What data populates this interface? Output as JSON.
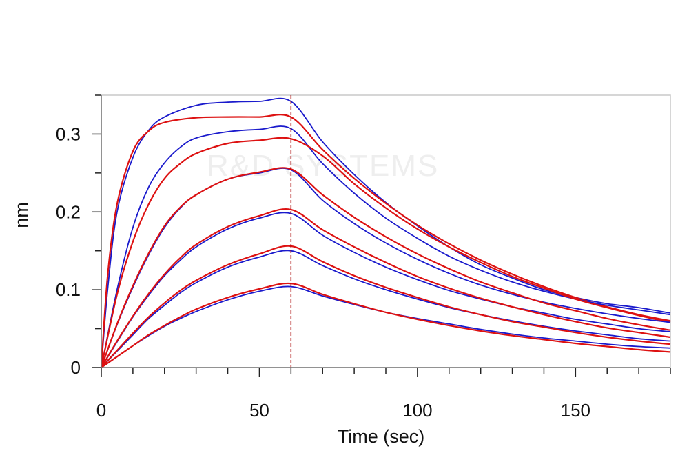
{
  "chart_data": {
    "type": "line",
    "title": "",
    "xlabel": "Time (sec)",
    "ylabel": "nm",
    "xlim": [
      0,
      180
    ],
    "ylim": [
      0,
      0.35
    ],
    "xticks": [
      "0",
      "50",
      "100",
      "150"
    ],
    "yticks": [
      "0",
      "0.1",
      "0.2",
      "0.3"
    ],
    "grid": false,
    "legend": "none",
    "association_end": 60,
    "watermark": "R&D SYSTEMS",
    "colors": {
      "measured": "#1a1acc",
      "fit": "#dd1111",
      "marker": "#aa0000",
      "frame": "#c8c8c8"
    },
    "series": [
      {
        "kind": "measured",
        "x": [
          0,
          2,
          5,
          10,
          15,
          20,
          30,
          40,
          50,
          60,
          70,
          80,
          90,
          100,
          110,
          120,
          130,
          140,
          150,
          160,
          170,
          180
        ],
        "y": [
          0,
          0.1,
          0.2,
          0.27,
          0.305,
          0.322,
          0.337,
          0.341,
          0.342,
          0.342,
          0.29,
          0.248,
          0.212,
          0.182,
          0.155,
          0.132,
          0.115,
          0.1,
          0.09,
          0.082,
          0.077,
          0.07
        ]
      },
      {
        "kind": "fit",
        "x": [
          0,
          2,
          5,
          10,
          15,
          20,
          30,
          40,
          50,
          60,
          70,
          80,
          90,
          100,
          110,
          120,
          130,
          140,
          150,
          160,
          170,
          180
        ],
        "y": [
          0,
          0.118,
          0.21,
          0.278,
          0.304,
          0.315,
          0.321,
          0.322,
          0.322,
          0.322,
          0.28,
          0.243,
          0.211,
          0.183,
          0.159,
          0.138,
          0.12,
          0.104,
          0.09,
          0.078,
          0.068,
          0.06
        ]
      },
      {
        "kind": "measured",
        "x": [
          0,
          5,
          10,
          15,
          20,
          25,
          30,
          40,
          50,
          60,
          70,
          80,
          90,
          100,
          110,
          120,
          130,
          140,
          150,
          160,
          170,
          180
        ],
        "y": [
          0,
          0.1,
          0.18,
          0.232,
          0.263,
          0.283,
          0.295,
          0.303,
          0.306,
          0.307,
          0.262,
          0.224,
          0.192,
          0.166,
          0.143,
          0.125,
          0.11,
          0.098,
          0.088,
          0.08,
          0.074,
          0.068
        ]
      },
      {
        "kind": "fit",
        "x": [
          0,
          5,
          10,
          15,
          20,
          25,
          30,
          40,
          50,
          60,
          70,
          80,
          90,
          100,
          110,
          120,
          130,
          140,
          150,
          160,
          170,
          180
        ],
        "y": [
          0,
          0.094,
          0.162,
          0.21,
          0.243,
          0.262,
          0.275,
          0.288,
          0.292,
          0.294,
          0.272,
          0.236,
          0.205,
          0.178,
          0.155,
          0.135,
          0.117,
          0.102,
          0.088,
          0.077,
          0.067,
          0.058
        ]
      },
      {
        "kind": "measured",
        "x": [
          0,
          5,
          10,
          15,
          20,
          25,
          30,
          40,
          50,
          60,
          70,
          80,
          90,
          100,
          110,
          120,
          130,
          140,
          150,
          160,
          170,
          180
        ],
        "y": [
          0,
          0.055,
          0.103,
          0.145,
          0.18,
          0.205,
          0.222,
          0.242,
          0.25,
          0.254,
          0.215,
          0.185,
          0.16,
          0.139,
          0.121,
          0.106,
          0.094,
          0.084,
          0.076,
          0.069,
          0.063,
          0.058
        ]
      },
      {
        "kind": "fit",
        "x": [
          0,
          5,
          10,
          15,
          20,
          25,
          30,
          40,
          50,
          60,
          70,
          80,
          90,
          100,
          110,
          120,
          130,
          140,
          150,
          160,
          170,
          180
        ],
        "y": [
          0,
          0.056,
          0.105,
          0.147,
          0.182,
          0.206,
          0.222,
          0.242,
          0.251,
          0.255,
          0.222,
          0.193,
          0.168,
          0.146,
          0.127,
          0.11,
          0.096,
          0.083,
          0.073,
          0.063,
          0.055,
          0.048
        ]
      },
      {
        "kind": "measured",
        "x": [
          0,
          5,
          10,
          15,
          20,
          25,
          30,
          40,
          50,
          60,
          70,
          80,
          90,
          100,
          110,
          120,
          130,
          140,
          150,
          160,
          170,
          180
        ],
        "y": [
          0,
          0.033,
          0.065,
          0.093,
          0.118,
          0.138,
          0.155,
          0.178,
          0.192,
          0.198,
          0.17,
          0.148,
          0.129,
          0.113,
          0.099,
          0.088,
          0.078,
          0.07,
          0.062,
          0.056,
          0.05,
          0.046
        ]
      },
      {
        "kind": "fit",
        "x": [
          0,
          5,
          10,
          15,
          20,
          25,
          30,
          40,
          50,
          60,
          70,
          80,
          90,
          100,
          110,
          120,
          130,
          140,
          150,
          160,
          170,
          180
        ],
        "y": [
          0,
          0.034,
          0.066,
          0.095,
          0.12,
          0.141,
          0.158,
          0.181,
          0.195,
          0.203,
          0.177,
          0.155,
          0.135,
          0.117,
          0.102,
          0.089,
          0.078,
          0.068,
          0.059,
          0.051,
          0.045,
          0.039
        ]
      },
      {
        "kind": "measured",
        "x": [
          0,
          5,
          10,
          15,
          20,
          25,
          30,
          40,
          50,
          60,
          70,
          80,
          90,
          100,
          110,
          120,
          130,
          140,
          150,
          160,
          170,
          180
        ],
        "y": [
          0,
          0.021,
          0.042,
          0.063,
          0.08,
          0.096,
          0.109,
          0.129,
          0.142,
          0.15,
          0.131,
          0.114,
          0.1,
          0.088,
          0.077,
          0.068,
          0.06,
          0.053,
          0.047,
          0.042,
          0.037,
          0.034
        ]
      },
      {
        "kind": "fit",
        "x": [
          0,
          5,
          10,
          15,
          20,
          25,
          30,
          40,
          50,
          60,
          70,
          80,
          90,
          100,
          110,
          120,
          130,
          140,
          150,
          160,
          170,
          180
        ],
        "y": [
          0,
          0.022,
          0.044,
          0.065,
          0.083,
          0.099,
          0.112,
          0.132,
          0.146,
          0.156,
          0.136,
          0.118,
          0.103,
          0.09,
          0.078,
          0.068,
          0.059,
          0.052,
          0.045,
          0.039,
          0.034,
          0.03
        ]
      },
      {
        "kind": "measured",
        "x": [
          0,
          5,
          10,
          15,
          20,
          25,
          30,
          40,
          50,
          60,
          70,
          80,
          90,
          100,
          110,
          120,
          130,
          140,
          150,
          160,
          170,
          180
        ],
        "y": [
          0,
          0.014,
          0.028,
          0.041,
          0.053,
          0.063,
          0.072,
          0.087,
          0.098,
          0.104,
          0.092,
          0.081,
          0.071,
          0.063,
          0.056,
          0.049,
          0.043,
          0.038,
          0.034,
          0.03,
          0.027,
          0.025
        ]
      },
      {
        "kind": "fit",
        "x": [
          0,
          5,
          10,
          15,
          20,
          25,
          30,
          40,
          50,
          60,
          70,
          80,
          90,
          100,
          110,
          120,
          130,
          140,
          150,
          160,
          170,
          180
        ],
        "y": [
          0,
          0.014,
          0.028,
          0.042,
          0.054,
          0.065,
          0.075,
          0.09,
          0.101,
          0.108,
          0.094,
          0.082,
          0.071,
          0.062,
          0.054,
          0.047,
          0.041,
          0.036,
          0.031,
          0.027,
          0.023,
          0.02
        ]
      }
    ]
  }
}
